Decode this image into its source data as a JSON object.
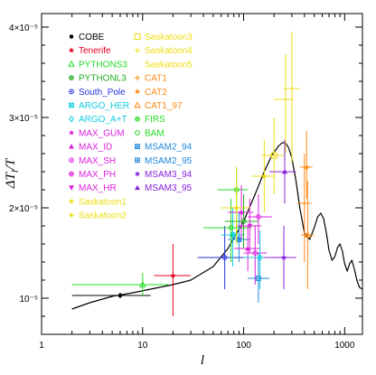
{
  "chart_data": {
    "type": "scatter",
    "xlabel": "l",
    "ylabel": "ΔT_l/T",
    "xscale": "log",
    "xlim": [
      1,
      1500
    ],
    "ylim": [
      6e-06,
      4.15e-05
    ],
    "x_ticks": [
      {
        "value": 1,
        "label": "1"
      },
      {
        "value": 10,
        "label": "10"
      },
      {
        "value": 100,
        "label": "100"
      },
      {
        "value": 1000,
        "label": "1000"
      }
    ],
    "y_ticks": [
      {
        "value": 1e-05,
        "label": "10⁻⁵"
      },
      {
        "value": 2e-05,
        "label": "2×10⁻⁵"
      },
      {
        "value": 3e-05,
        "label": "3×10⁻⁵"
      },
      {
        "value": 4e-05,
        "label": "4×10⁻⁵"
      }
    ],
    "legend_placement": "top-left",
    "legend": [
      {
        "label": "COBE",
        "color": "#000000",
        "marker": "dot"
      },
      {
        "label": "Tenerife",
        "color": "#e8001c",
        "marker": "star"
      },
      {
        "label": "PYTHONS3",
        "color": "#22dd22",
        "marker": "triangle-open"
      },
      {
        "label": "PYTHONL3",
        "color": "#22aa22",
        "marker": "circle-plus"
      },
      {
        "label": "South_Pole",
        "color": "#2233dd",
        "marker": "circle-dot"
      },
      {
        "label": "ARGO_HER",
        "color": "#11ccdd",
        "marker": "square-x"
      },
      {
        "label": "ARGO_A+T",
        "color": "#11ccdd",
        "marker": "diamond-open"
      },
      {
        "label": "MAX_GUM",
        "color": "#dd22dd",
        "marker": "star"
      },
      {
        "label": "MAX_ID",
        "color": "#dd22dd",
        "marker": "triangle"
      },
      {
        "label": "MAX_SH",
        "color": "#dd22dd",
        "marker": "circle-dot"
      },
      {
        "label": "MAX_PH",
        "color": "#dd22dd",
        "marker": "circle-plus"
      },
      {
        "label": "MAX_HR",
        "color": "#dd22dd",
        "marker": "triangle-down"
      },
      {
        "label": "Saskatoon1",
        "color": "#eedd11",
        "marker": "star"
      },
      {
        "label": "Saskatoon2",
        "color": "#eedd11",
        "marker": "star"
      },
      {
        "label": "Saskatoon3",
        "color": "#eedd11",
        "marker": "square-open"
      },
      {
        "label": "Saskatoon4",
        "color": "#eedd11",
        "marker": "plus"
      },
      {
        "label": "Saskatoon5",
        "color": "#eedd11",
        "marker": "none"
      },
      {
        "label": "CAT1",
        "color": "#ff8811",
        "marker": "plus"
      },
      {
        "label": "CAT2",
        "color": "#ff8811",
        "marker": "star"
      },
      {
        "label": "CAT1_97",
        "color": "#ff8811",
        "marker": "triangle-open"
      },
      {
        "label": "FIRS",
        "color": "#22dd22",
        "marker": "circle-plus"
      },
      {
        "label": "BAM",
        "color": "#22dd22",
        "marker": "circle-open"
      },
      {
        "label": "MSAM2_94",
        "color": "#2288dd",
        "marker": "square-x"
      },
      {
        "label": "MSAM2_95",
        "color": "#2288dd",
        "marker": "square-plus"
      },
      {
        "label": "MSAM3_94",
        "color": "#8822dd",
        "marker": "star"
      },
      {
        "label": "MSAM3_95",
        "color": "#8822dd",
        "marker": "triangle"
      }
    ],
    "points": [
      {
        "exp": "COBE",
        "x": 6,
        "xlo": 2,
        "xhi": 12,
        "y": 1.03e-05,
        "ylo": 1e-05,
        "yhi": 1.06e-05,
        "color": "#000000",
        "marker": "dot"
      },
      {
        "exp": "PYTHONS3",
        "x": 10,
        "xlo": 2,
        "xhi": 18,
        "y": 1.15e-05,
        "ylo": 1.03e-05,
        "yhi": 1.28e-05,
        "color": "#22dd22",
        "marker": "triangle-open"
      },
      {
        "exp": "Tenerife",
        "x": 20,
        "xlo": 13,
        "xhi": 30,
        "y": 1.25e-05,
        "ylo": 8e-06,
        "yhi": 1.6e-05,
        "color": "#e8001c",
        "marker": "star"
      },
      {
        "exp": "South_Pole",
        "x": 65,
        "xlo": 35,
        "xhi": 100,
        "y": 1.45e-05,
        "ylo": 1.1e-05,
        "yhi": 1.8e-05,
        "color": "#2233dd",
        "marker": "circle-dot"
      },
      {
        "exp": "ARGO_HER",
        "x": 78,
        "xlo": 60,
        "xhi": 100,
        "y": 1.7e-05,
        "ylo": 1.35e-05,
        "yhi": 2e-05,
        "color": "#11ccdd",
        "marker": "square-x"
      },
      {
        "exp": "MSAM2_94",
        "x": 90,
        "xlo": 70,
        "xhi": 115,
        "y": 1.65e-05,
        "ylo": 1.4e-05,
        "yhi": 1.95e-05,
        "color": "#2288dd",
        "marker": "square-x"
      },
      {
        "exp": "BAM",
        "x": 75,
        "xlo": 40,
        "xhi": 120,
        "y": 1.78e-05,
        "ylo": 1.4e-05,
        "yhi": 2.1e-05,
        "color": "#22dd22",
        "marker": "circle-open"
      },
      {
        "exp": "FIRS",
        "x": 85,
        "xlo": 55,
        "xhi": 110,
        "y": 2.2e-05,
        "ylo": 1.6e-05,
        "yhi": 2.45e-05,
        "color": "#22dd22",
        "marker": "circle-plus"
      },
      {
        "exp": "MAX_GUM",
        "x": 95,
        "xlo": 70,
        "xhi": 125,
        "y": 1.95e-05,
        "ylo": 1.65e-05,
        "yhi": 2.25e-05,
        "color": "#dd22dd",
        "marker": "star"
      },
      {
        "exp": "PYTHONL3",
        "x": 100,
        "xlo": 65,
        "xhi": 140,
        "y": 1.85e-05,
        "ylo": 1.55e-05,
        "yhi": 2.15e-05,
        "color": "#22aa22",
        "marker": "circle-plus"
      },
      {
        "exp": "MAX_ID",
        "x": 110,
        "xlo": 80,
        "xhi": 145,
        "y": 1.55e-05,
        "ylo": 1.3e-05,
        "yhi": 1.8e-05,
        "color": "#dd22dd",
        "marker": "triangle"
      },
      {
        "exp": "MAX_SH",
        "x": 130,
        "xlo": 100,
        "xhi": 170,
        "y": 1.5e-05,
        "ylo": 1.15e-05,
        "yhi": 1.8e-05,
        "color": "#dd22dd",
        "marker": "circle-dot"
      },
      {
        "exp": "MAX_PH",
        "x": 140,
        "xlo": 110,
        "xhi": 190,
        "y": 1.9e-05,
        "ylo": 1.6e-05,
        "yhi": 2.15e-05,
        "color": "#dd22dd",
        "marker": "circle-plus"
      },
      {
        "exp": "MAX_HR",
        "x": 115,
        "xlo": 85,
        "xhi": 150,
        "y": 1.8e-05,
        "ylo": 1.5e-05,
        "yhi": 2.1e-05,
        "color": "#dd22dd",
        "marker": "triangle-down"
      },
      {
        "exp": "MSAM2_95",
        "x": 140,
        "xlo": 110,
        "xhi": 180,
        "y": 1.22e-05,
        "ylo": 9.5e-06,
        "yhi": 1.5e-05,
        "color": "#2288dd",
        "marker": "square-plus"
      },
      {
        "exp": "ARGO_A+T",
        "x": 145,
        "xlo": 100,
        "xhi": 200,
        "y": 1.45e-05,
        "ylo": 1.1e-05,
        "yhi": 1.75e-05,
        "color": "#11ccdd",
        "marker": "diamond-open"
      },
      {
        "exp": "Saskatoon1",
        "x": 85,
        "xlo": 60,
        "xhi": 115,
        "y": 2e-05,
        "ylo": 1.6e-05,
        "yhi": 2.45e-05,
        "color": "#eedd11",
        "marker": "star"
      },
      {
        "exp": "Saskatoon2",
        "x": 160,
        "xlo": 120,
        "xhi": 200,
        "y": 2.35e-05,
        "ylo": 1.95e-05,
        "yhi": 2.75e-05,
        "color": "#eedd11",
        "marker": "star"
      },
      {
        "exp": "Saskatoon3",
        "x": 200,
        "xlo": 150,
        "xhi": 250,
        "y": 2.58e-05,
        "ylo": 2.15e-05,
        "yhi": 3e-05,
        "color": "#eedd11",
        "marker": "square-open"
      },
      {
        "exp": "Saskatoon4",
        "x": 260,
        "xlo": 200,
        "xhi": 310,
        "y": 3.2e-05,
        "ylo": 2.6e-05,
        "yhi": 3.7e-05,
        "color": "#eedd11",
        "marker": "plus"
      },
      {
        "exp": "Saskatoon5",
        "x": 300,
        "xlo": 250,
        "xhi": 360,
        "y": 3.32e-05,
        "ylo": 2.5e-05,
        "yhi": 3.95e-05,
        "color": "#eedd11",
        "marker": "none"
      },
      {
        "exp": "CAT1",
        "x": 400,
        "xlo": 340,
        "xhi": 470,
        "y": 2.05e-05,
        "ylo": 1.4e-05,
        "yhi": 2.6e-05,
        "color": "#ff8811",
        "marker": "plus"
      },
      {
        "exp": "CAT2",
        "x": 420,
        "xlo": 360,
        "xhi": 480,
        "y": 2.45e-05,
        "ylo": 2.1e-05,
        "yhi": 2.85e-05,
        "color": "#ff8811",
        "marker": "star"
      },
      {
        "exp": "CAT1_97",
        "x": 430,
        "xlo": 370,
        "xhi": 500,
        "y": 1.7e-05,
        "ylo": 1.1e-05,
        "yhi": 2.3e-05,
        "color": "#ff8811",
        "marker": "triangle-open"
      },
      {
        "exp": "MSAM3_94",
        "x": 250,
        "xlo": 160,
        "xhi": 330,
        "y": 1.45e-05,
        "ylo": 1.1e-05,
        "yhi": 1.8e-05,
        "color": "#8822dd",
        "marker": "star"
      },
      {
        "exp": "MSAM3_95",
        "x": 255,
        "xlo": 180,
        "xhi": 330,
        "y": 2.4e-05,
        "ylo": 2.05e-05,
        "yhi": 2.75e-05,
        "color": "#8822dd",
        "marker": "triangle"
      }
    ],
    "model_curve": {
      "color": "#000000",
      "x": [
        2,
        3,
        5,
        8,
        12,
        20,
        30,
        50,
        70,
        100,
        130,
        160,
        190,
        220,
        240,
        260,
        280,
        300,
        330,
        360,
        400,
        450,
        500,
        540,
        580,
        620,
        660,
        700,
        750,
        800,
        850,
        900,
        950,
        1000,
        1060,
        1120,
        1180,
        1250,
        1320,
        1400,
        1500
      ],
      "y": [
        8.8e-06,
        9.5e-06,
        1.02e-05,
        1.06e-05,
        1.1e-05,
        1.15e-05,
        1.2e-05,
        1.35e-05,
        1.55e-05,
        1.85e-05,
        2.15e-05,
        2.4e-05,
        2.58e-05,
        2.68e-05,
        2.72e-05,
        2.72e-05,
        2.66e-05,
        2.55e-05,
        2.3e-05,
        2e-05,
        1.72e-05,
        1.65e-05,
        1.78e-05,
        1.9e-05,
        1.94e-05,
        1.88e-05,
        1.72e-05,
        1.53e-05,
        1.42e-05,
        1.46e-05,
        1.56e-05,
        1.6e-05,
        1.52e-05,
        1.38e-05,
        1.3e-05,
        1.38e-05,
        1.42e-05,
        1.32e-05,
        1.2e-05,
        1.12e-05,
        1.1e-05
      ]
    }
  }
}
